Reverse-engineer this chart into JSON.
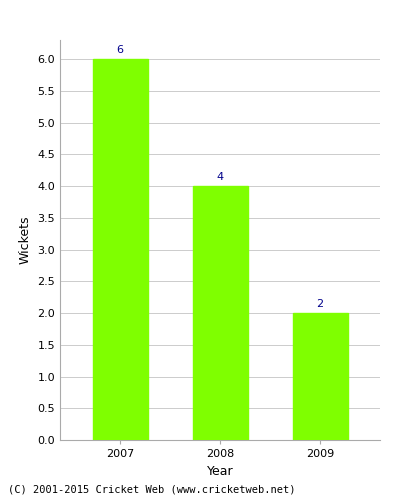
{
  "categories": [
    "2007",
    "2008",
    "2009"
  ],
  "values": [
    6,
    4,
    2
  ],
  "bar_color": "#7fff00",
  "bar_edge_color": "#7fff00",
  "ylabel": "Wickets",
  "xlabel": "Year",
  "ylim": [
    0,
    6.3
  ],
  "yticks": [
    0.0,
    0.5,
    1.0,
    1.5,
    2.0,
    2.5,
    3.0,
    3.5,
    4.0,
    4.5,
    5.0,
    5.5,
    6.0
  ],
  "label_color": "#00008b",
  "label_fontsize": 8,
  "axis_label_fontsize": 9,
  "tick_fontsize": 8,
  "grid_color": "#cccccc",
  "background_color": "#ffffff",
  "footnote": "(C) 2001-2015 Cricket Web (www.cricketweb.net)",
  "footnote_fontsize": 7.5
}
